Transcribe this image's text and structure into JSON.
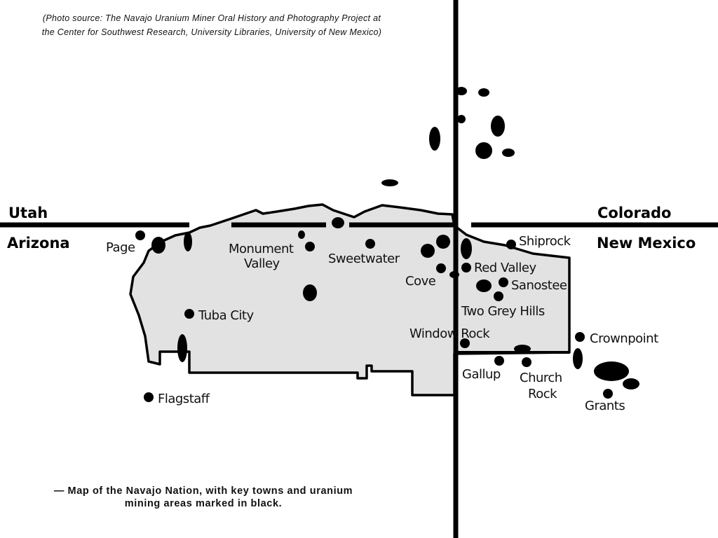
{
  "source_caption": [
    "(Photo source: The Navajo Uranium Miner Oral History and Photography Project at",
    "the Center for Southwest Research, University Libraries, University of New Mexico)"
  ],
  "caption": [
    "— Map of the Navajo Nation, with key towns and uranium",
    "mining areas marked in black."
  ],
  "states": {
    "utah": "Utah",
    "arizona": "Arizona",
    "colorado": "Colorado",
    "new_mexico": "New Mexico"
  },
  "towns": {
    "page": "Page",
    "monument_valley_1": "Monument",
    "monument_valley_2": "Valley",
    "sweetwater": "Sweetwater",
    "cove": "Cove",
    "red_valley": "Red Valley",
    "shiprock": "Shiprock",
    "sanostee": "Sanostee",
    "two_grey_hills": "Two Grey Hills",
    "window_rock": "Window Rock",
    "crownpoint": "Crownpoint",
    "gallup": "Gallup",
    "church_rock_1": "Church",
    "church_rock_2": "Rock",
    "grants": "Grants",
    "tuba_city": "Tuba City",
    "flagstaff": "Flagstaff"
  },
  "colors": {
    "reservation_fill": "#e2e2e2",
    "lines": "#000000",
    "mining_areas": "#000000"
  }
}
